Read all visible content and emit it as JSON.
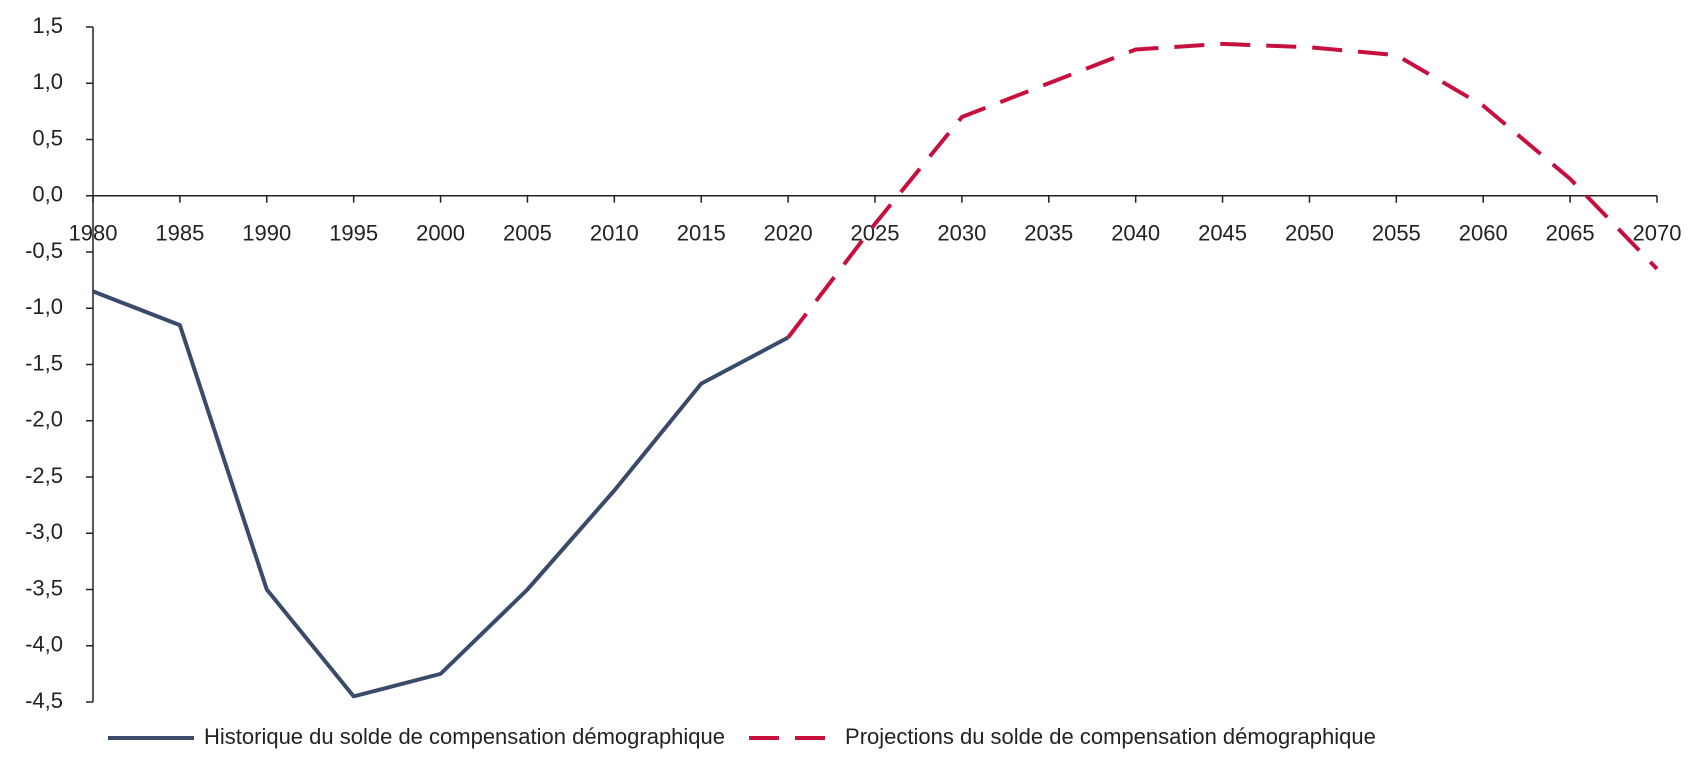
{
  "chart_data": {
    "type": "line",
    "x": [
      1980,
      1985,
      1990,
      1995,
      2000,
      2005,
      2010,
      2015,
      2020,
      2025,
      2030,
      2035,
      2040,
      2045,
      2050,
      2055,
      2060,
      2065,
      2070
    ],
    "series": [
      {
        "name": "Historique du solde de compensation démographique",
        "color": "#3a4a6b",
        "dashed": false,
        "values": [
          -0.85,
          -1.15,
          -3.5,
          -4.45,
          -4.25,
          -3.5,
          -2.62,
          -1.67,
          -1.26,
          null,
          null,
          null,
          null,
          null,
          null,
          null,
          null,
          null,
          null
        ]
      },
      {
        "name": "Projections du solde de compensation démographique",
        "color": "#c8103e",
        "dashed": true,
        "values": [
          null,
          null,
          null,
          null,
          null,
          null,
          null,
          null,
          -1.26,
          -0.25,
          0.7,
          1.0,
          1.3,
          1.35,
          1.32,
          1.25,
          0.8,
          0.15,
          -0.65
        ]
      }
    ],
    "xlim": [
      1980,
      2070
    ],
    "xticks": [
      1980,
      1985,
      1990,
      1995,
      2000,
      2005,
      2010,
      2015,
      2020,
      2025,
      2030,
      2035,
      2040,
      2045,
      2050,
      2055,
      2060,
      2065,
      2070
    ],
    "ylim": [
      -4.5,
      1.5
    ],
    "yticks": [
      {
        "value": 1.5,
        "label": "1,5"
      },
      {
        "value": 1.0,
        "label": "1,0"
      },
      {
        "value": 0.5,
        "label": "0,5"
      },
      {
        "value": 0.0,
        "label": "0,0"
      },
      {
        "value": -0.5,
        "label": "-0,5"
      },
      {
        "value": -1.0,
        "label": "-1,0"
      },
      {
        "value": -1.5,
        "label": "-1,5"
      },
      {
        "value": -2.0,
        "label": "-2,0"
      },
      {
        "value": -2.5,
        "label": "-2,5"
      },
      {
        "value": -3.0,
        "label": "-3,0"
      },
      {
        "value": -3.5,
        "label": "-3,5"
      },
      {
        "value": -4.0,
        "label": "-4,0"
      },
      {
        "value": -4.5,
        "label": "-4,5"
      }
    ],
    "legend": "bottom"
  }
}
